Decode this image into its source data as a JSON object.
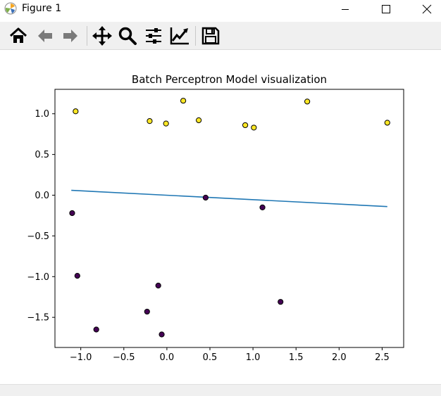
{
  "window": {
    "title": "Figure 1"
  },
  "toolbar": {
    "buttons": [
      {
        "name": "home-icon",
        "label": "Home"
      },
      {
        "name": "back-arrow-icon",
        "label": "Back"
      },
      {
        "name": "forward-arrow-icon",
        "label": "Forward"
      },
      {
        "name": "pan-icon",
        "label": "Pan"
      },
      {
        "name": "zoom-icon",
        "label": "Zoom"
      },
      {
        "name": "subplots-icon",
        "label": "Configure subplots"
      },
      {
        "name": "edit-axes-icon",
        "label": "Edit axis"
      },
      {
        "name": "save-icon",
        "label": "Save"
      }
    ]
  },
  "chart_data": {
    "type": "scatter",
    "title": "Batch Perceptron Model visualization",
    "xlabel": "",
    "ylabel": "",
    "xlim": [
      -1.3,
      2.75
    ],
    "ylim": [
      -1.87,
      1.3
    ],
    "xticks": [
      -1.0,
      -0.5,
      0.0,
      0.5,
      1.0,
      1.5,
      2.0,
      2.5
    ],
    "xtick_labels": [
      "−1.0",
      "−0.5",
      "0.0",
      "0.5",
      "1.0",
      "1.5",
      "2.0",
      "2.5"
    ],
    "yticks": [
      -1.5,
      -1.0,
      -0.5,
      0.0,
      0.5,
      1.0
    ],
    "ytick_labels": [
      "−1.5",
      "−1.0",
      "−0.5",
      "0.0",
      "0.5",
      "1.0"
    ],
    "grid": false,
    "colors": {
      "class_1": "#fde725",
      "class_0": "#440154",
      "line": "#1f77b4",
      "edge": "#000000"
    },
    "series": [
      {
        "class": 1,
        "points": [
          [
            -1.06,
            1.03
          ],
          [
            -0.2,
            0.91
          ],
          [
            -0.01,
            0.88
          ],
          [
            0.19,
            1.16
          ],
          [
            0.37,
            0.92
          ],
          [
            0.91,
            0.86
          ],
          [
            1.01,
            0.83
          ],
          [
            1.63,
            1.15
          ],
          [
            2.56,
            0.89
          ]
        ]
      },
      {
        "class": 0,
        "points": [
          [
            -1.1,
            -0.22
          ],
          [
            -1.04,
            -0.99
          ],
          [
            -0.82,
            -1.65
          ],
          [
            -0.23,
            -1.43
          ],
          [
            -0.1,
            -1.11
          ],
          [
            -0.06,
            -1.71
          ],
          [
            0.45,
            -0.03
          ],
          [
            1.11,
            -0.15
          ],
          [
            1.32,
            -1.31
          ]
        ]
      }
    ],
    "decision_line": {
      "x": [
        -1.11,
        2.56
      ],
      "y": [
        0.06,
        -0.14
      ]
    }
  }
}
